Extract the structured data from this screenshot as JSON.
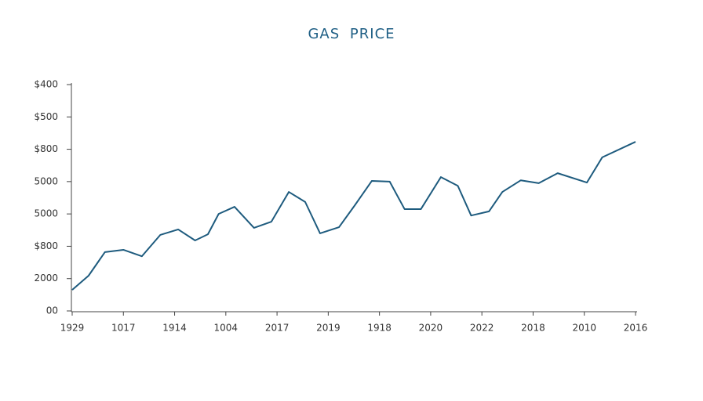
{
  "chart_data": {
    "type": "line",
    "title": "GAS PRICE",
    "x": [
      0,
      0.32,
      0.64,
      1.0,
      1.36,
      1.72,
      2.07,
      2.4,
      2.65,
      2.86,
      3.17,
      3.55,
      3.89,
      4.23,
      4.55,
      4.84,
      5.21,
      5.52,
      5.85,
      6.2,
      6.49,
      6.81,
      7.2,
      7.53,
      7.79,
      8.14,
      8.4,
      8.76,
      9.11,
      9.48,
      10.05,
      10.35,
      11.0
    ],
    "series": [
      {
        "color": "#1e5b7e",
        "values": [
          0.65,
          1.09,
          1.82,
          1.89,
          1.69,
          2.35,
          2.52,
          2.18,
          2.37,
          3.0,
          3.22,
          2.57,
          2.76,
          3.68,
          3.37,
          2.4,
          2.59,
          3.27,
          4.02,
          4.0,
          3.15,
          3.15,
          4.14,
          3.87,
          2.95,
          3.08,
          3.68,
          4.04,
          3.95,
          4.26,
          3.97,
          4.75,
          5.23
        ]
      }
    ],
    "xlim": [
      0,
      11
    ],
    "xticks": [
      {
        "value": 0,
        "label": "1929"
      },
      {
        "value": 1,
        "label": "1017"
      },
      {
        "value": 2,
        "label": "1914"
      },
      {
        "value": 3,
        "label": "1004"
      },
      {
        "value": 4,
        "label": "2017"
      },
      {
        "value": 5,
        "label": "2019"
      },
      {
        "value": 6,
        "label": "1918"
      },
      {
        "value": 7,
        "label": "2020"
      },
      {
        "value": 8,
        "label": "2022"
      },
      {
        "value": 9,
        "label": "2018"
      },
      {
        "value": 10,
        "label": "2010"
      },
      {
        "value": 11,
        "label": "2016"
      }
    ],
    "ylim": [
      0,
      7
    ],
    "yticks": [
      {
        "value": 0,
        "label": "00"
      },
      {
        "value": 1,
        "label": "2000"
      },
      {
        "value": 2,
        "label": "$800"
      },
      {
        "value": 3,
        "label": "5000"
      },
      {
        "value": 4,
        "label": "5000"
      },
      {
        "value": 5,
        "label": "$800"
      },
      {
        "value": 6,
        "label": "$500"
      },
      {
        "value": 7,
        "label": "$400"
      }
    ],
    "grid": false
  }
}
